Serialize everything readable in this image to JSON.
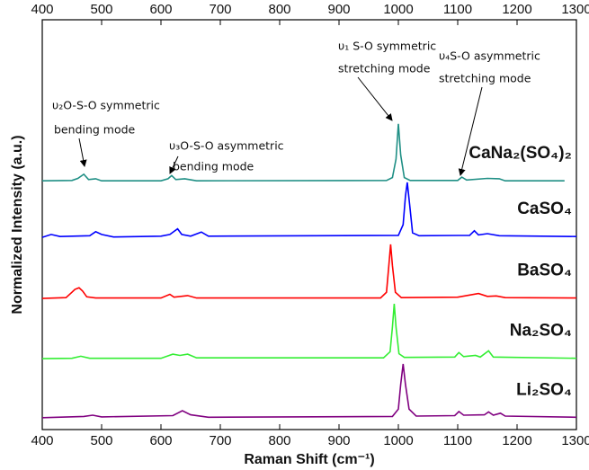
{
  "chart_data": {
    "type": "line",
    "xlabel": "Raman Shift (cm⁻¹)",
    "ylabel": "Normalized Intensity (a.u.)",
    "xlim": [
      400,
      1300
    ],
    "xticks": [
      400,
      500,
      600,
      700,
      800,
      900,
      1000,
      1100,
      1200,
      1300
    ],
    "ylim": [
      0,
      100
    ],
    "series": [
      {
        "name": "CaNa₂(SO₄)₂",
        "color": "#1f8f85",
        "x": [
          400,
          450,
          460,
          470,
          478,
          490,
          500,
          600,
          612,
          618,
          625,
          640,
          660,
          980,
          990,
          996,
          1000,
          1004,
          1010,
          1020,
          1100,
          1107,
          1115,
          1150,
          1170,
          1180,
          1280
        ],
        "values": [
          60.7,
          60.8,
          61.3,
          62.3,
          61,
          61.2,
          60.7,
          60.7,
          61.2,
          62,
          61,
          61.2,
          60.7,
          60.8,
          61.5,
          66,
          74.6,
          67,
          61.5,
          60.8,
          60.8,
          61.6,
          60.9,
          61.3,
          61.2,
          60.7,
          60.7
        ]
      },
      {
        "name": "CaSO₄",
        "color": "#0000ff",
        "x": [
          400,
          415,
          430,
          480,
          490,
          500,
          520,
          600,
          615,
          628,
          635,
          650,
          668,
          680,
          1000,
          1008,
          1012,
          1015,
          1019,
          1024,
          1035,
          1120,
          1128,
          1135,
          1150,
          1170,
          1300
        ],
        "values": [
          46.9,
          47.6,
          47.1,
          47.3,
          48.3,
          47.6,
          47,
          47.2,
          47.6,
          49,
          47.6,
          47.2,
          48.2,
          47.2,
          47.4,
          50,
          57,
          60.3,
          55,
          48,
          47.3,
          47.4,
          48.5,
          47.5,
          47.8,
          47.3,
          47.1
        ]
      },
      {
        "name": "BaSO₄",
        "color": "#ff0000",
        "x": [
          400,
          440,
          450,
          455,
          462,
          468,
          475,
          490,
          600,
          615,
          622,
          645,
          660,
          970,
          980,
          984,
          987,
          990,
          995,
          1005,
          1100,
          1135,
          1150,
          1165,
          1180,
          1300
        ],
        "values": [
          32,
          32.2,
          33.5,
          34.2,
          34.6,
          33.8,
          32.4,
          32.1,
          32.1,
          33,
          32.3,
          32.7,
          32.1,
          32.1,
          33.5,
          40,
          45.2,
          40,
          33.5,
          32.2,
          32.3,
          33.2,
          32.5,
          32.6,
          32.2,
          32.1
        ]
      },
      {
        "name": "Na₂SO₄",
        "color": "#33ee33",
        "x": [
          400,
          450,
          465,
          480,
          600,
          620,
          632,
          645,
          660,
          975,
          986,
          990,
          993,
          996,
          1001,
          1010,
          1095,
          1102,
          1110,
          1130,
          1138,
          1152,
          1160,
          1300
        ],
        "values": [
          17.3,
          17.4,
          17.9,
          17.4,
          17.4,
          18.4,
          18.1,
          18.4,
          17.5,
          17.5,
          19,
          25,
          30.7,
          25,
          18.5,
          17.6,
          17.7,
          18.8,
          17.8,
          18.1,
          17.7,
          19.2,
          17.7,
          17.4
        ]
      },
      {
        "name": "Li₂SO₄",
        "color": "#800080",
        "x": [
          400,
          470,
          485,
          500,
          620,
          636,
          650,
          680,
          990,
          1000,
          1004,
          1008,
          1012,
          1018,
          1030,
          1095,
          1102,
          1110,
          1145,
          1152,
          1160,
          1172,
          1180,
          1300
        ],
        "values": [
          2.9,
          3.2,
          3.5,
          3.1,
          3.4,
          4.6,
          3.6,
          3,
          3.2,
          5,
          11,
          16,
          11,
          5,
          3.3,
          3.4,
          4.4,
          3.5,
          3.6,
          4.3,
          3.5,
          4,
          3.3,
          3
        ]
      }
    ],
    "annotations": [
      [
        "υ₂O-S-O symmetric",
        "bending mode"
      ],
      [
        "υ₃O-S-O asymmetric",
        "bending mode"
      ],
      [
        "υ₁ S-O symmetric",
        "stretching mode"
      ],
      [
        "υ₄S-O asymmetric",
        "stretching mode"
      ]
    ]
  }
}
